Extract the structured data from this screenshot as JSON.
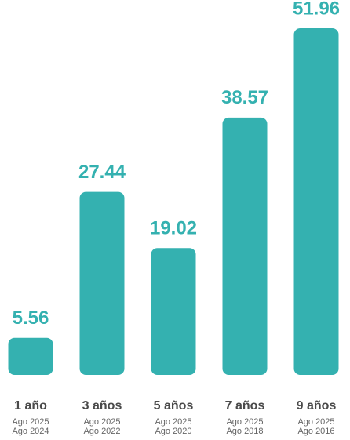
{
  "chart_data": {
    "type": "bar",
    "categories": [
      "1 año",
      "3 años",
      "5 años",
      "7 años",
      "9 años"
    ],
    "periods": [
      [
        "Ago 2025",
        "Ago 2024"
      ],
      [
        "Ago 2025",
        "Ago 2022"
      ],
      [
        "Ago 2025",
        "Ago 2020"
      ],
      [
        "Ago 2025",
        "Ago 2018"
      ],
      [
        "Ago 2025",
        "Ago 2016"
      ]
    ],
    "values": [
      5.56,
      27.44,
      19.02,
      38.57,
      51.96
    ],
    "color": "#34b1b0"
  }
}
